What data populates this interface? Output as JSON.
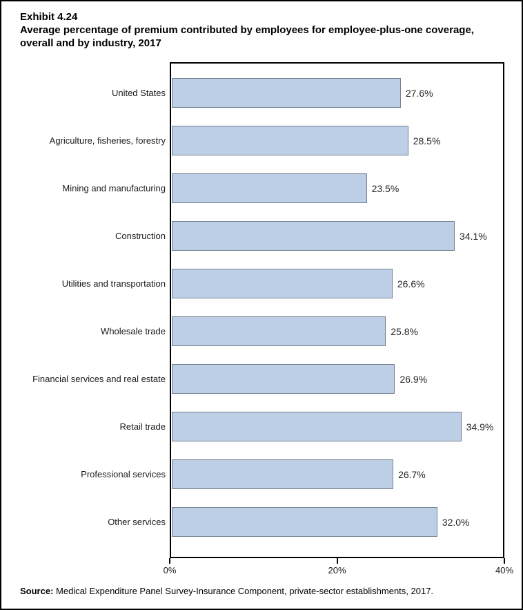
{
  "header": {
    "exhibit_number": "Exhibit 4.24",
    "title_line1": "Average percentage of premium contributed by employees for employee-plus-one coverage,",
    "title_line2": "overall and by industry, 2017"
  },
  "chart_data": {
    "type": "bar",
    "orientation": "horizontal",
    "title": "Exhibit 4.24 Average percentage of premium contributed by employees for employee-plus-one coverage, overall and by industry, 2017",
    "categories": [
      "United States",
      "Agriculture, fisheries, forestry",
      "Mining and manufacturing",
      "Construction",
      "Utilities and transportation",
      "Wholesale trade",
      "Financial services and real estate",
      "Retail trade",
      "Professional services",
      "Other services"
    ],
    "values": [
      27.6,
      28.5,
      23.5,
      34.1,
      26.6,
      25.8,
      26.9,
      34.9,
      26.7,
      32.0
    ],
    "value_labels": [
      "27.6%",
      "28.5%",
      "23.5%",
      "34.1%",
      "26.6%",
      "25.8%",
      "26.9%",
      "34.9%",
      "26.7%",
      "32.0%"
    ],
    "xlabel": "",
    "ylabel": "",
    "xlim": [
      0,
      40
    ],
    "x_ticks": [
      {
        "value": 0,
        "label": "0%"
      },
      {
        "value": 20,
        "label": "20%"
      },
      {
        "value": 40,
        "label": "40%"
      }
    ],
    "grid": "off",
    "legend": "none",
    "bar_fill": "#BCCFE6",
    "bar_border": "#73808E"
  },
  "footer": {
    "source_label": "Source:",
    "source_text": "Medical Expenditure Panel Survey-Insurance Component, private-sector establishments, 2017."
  }
}
